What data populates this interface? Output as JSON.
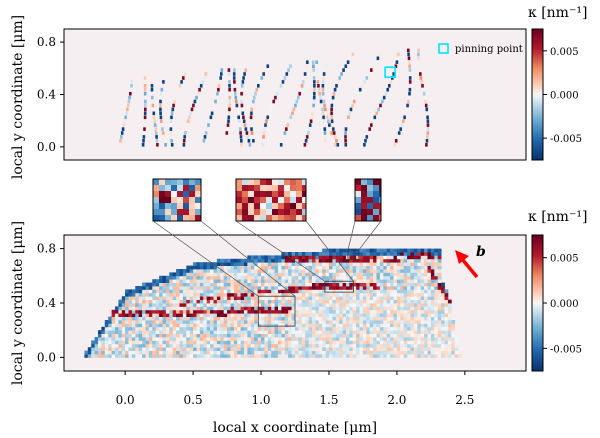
{
  "chart_data": [
    {
      "type": "heatmap",
      "panel": "top",
      "description_of_marks": "curvature along dislocation lines (segmented, colored by kappa)",
      "xlim": [
        -0.45,
        2.95
      ],
      "ylim": [
        -0.1,
        0.9
      ],
      "xticks": [],
      "yticks": [
        0.0,
        0.4,
        0.8
      ],
      "ytick_labels": [
        "0.0",
        "0.4",
        "0.8"
      ],
      "ylabel": "local y coordinate [μm]",
      "line_x_positions": [
        -0.05,
        0.08,
        0.18,
        0.28,
        0.38,
        0.48,
        0.58,
        0.68,
        0.78,
        0.88,
        0.98,
        1.08,
        1.18,
        1.28,
        1.38,
        1.48,
        1.58,
        1.7,
        1.82,
        1.96,
        2.12
      ],
      "pinning_point": {
        "x": 1.95,
        "y": 0.57
      },
      "legend": {
        "label": "pinning point",
        "marker": "cyan open square",
        "placement": "top-right"
      },
      "colorbar": {
        "label": "κ [nm⁻¹]",
        "range": [
          -0.0075,
          0.0075
        ],
        "ticks": [
          0.005,
          0.0,
          -0.005
        ],
        "tick_labels": [
          "0.005",
          "0.000",
          "-0.005"
        ],
        "colormap": "RdBu_r"
      }
    },
    {
      "type": "heatmap",
      "panel": "bottom",
      "description_of_marks": "curvature field over swept area (colored by kappa)",
      "xlim": [
        -0.45,
        2.95
      ],
      "ylim": [
        -0.1,
        0.9
      ],
      "xticks": [
        0.0,
        0.5,
        1.0,
        1.5,
        2.0,
        2.5
      ],
      "xtick_labels": [
        "0.0",
        "0.5",
        "1.0",
        "1.5",
        "2.0",
        "2.5"
      ],
      "yticks": [
        0.0,
        0.4,
        0.8
      ],
      "ytick_labels": [
        "0.0",
        "0.4",
        "0.8"
      ],
      "xlabel": "local x coordinate [μm]",
      "ylabel": "local y coordinate [μm]",
      "region_upper_edge": [
        [
          -0.3,
          0.03
        ],
        [
          0.0,
          0.48
        ],
        [
          0.5,
          0.68
        ],
        [
          1.0,
          0.74
        ],
        [
          1.5,
          0.78
        ],
        [
          2.0,
          0.8
        ],
        [
          2.3,
          0.8
        ],
        [
          2.3,
          0.58
        ],
        [
          2.4,
          0.4
        ],
        [
          2.45,
          0.05
        ]
      ],
      "zoom_boxes": [
        {
          "x0": 0.98,
          "x1": 1.25,
          "y0": 0.23,
          "y1": 0.45
        },
        {
          "x0": 1.47,
          "x1": 1.68,
          "y0": 0.48,
          "y1": 0.56
        },
        {
          "x0": 1.64,
          "x1": 1.72,
          "y0": 0.72,
          "y1": 0.79
        }
      ],
      "arrow_label": "b",
      "colorbar": {
        "label": "κ [nm⁻¹]",
        "range": [
          -0.0075,
          0.0075
        ],
        "ticks": [
          0.005,
          0.0,
          -0.005
        ],
        "tick_labels": [
          "0.005",
          "0.000",
          "-0.005"
        ],
        "colormap": "RdBu_r"
      }
    }
  ],
  "colors": {
    "colormap_low": "#08306b",
    "colormap_mid": "#f7f2f2",
    "colormap_high": "#67001f",
    "panel_background": "#f5eff2",
    "pinning_marker": "#00e5ff",
    "arrow": "#ff0000"
  }
}
